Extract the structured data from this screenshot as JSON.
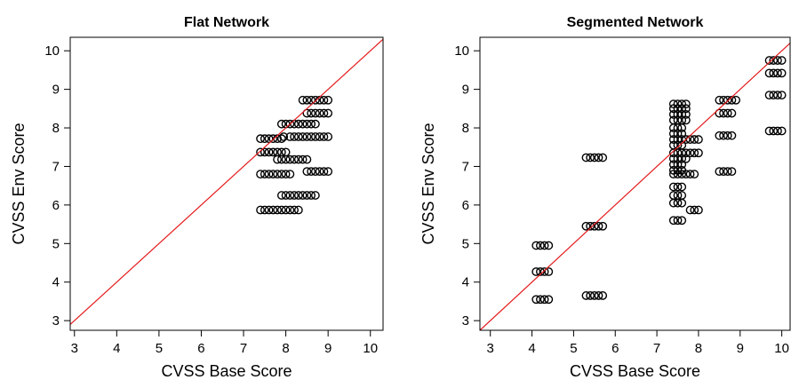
{
  "chart_data": [
    {
      "type": "scatter",
      "title": "Flat Network",
      "xlabel": "CVSS Base Score",
      "ylabel": "CVSS Env Score",
      "xlim": [
        2.9,
        10.3
      ],
      "ylim": [
        2.75,
        10.35
      ],
      "xticks": [
        3,
        4,
        5,
        6,
        7,
        8,
        9,
        10
      ],
      "yticks": [
        3,
        4,
        5,
        6,
        7,
        8,
        9,
        10
      ],
      "reference_line": {
        "slope": 1,
        "intercept": 0,
        "color": "#e41a1c"
      },
      "point_color": "#000000",
      "points": [
        [
          7.4,
          5.87
        ],
        [
          7.5,
          5.87
        ],
        [
          7.6,
          5.87
        ],
        [
          7.7,
          5.87
        ],
        [
          7.8,
          5.87
        ],
        [
          7.9,
          5.87
        ],
        [
          8.0,
          5.87
        ],
        [
          8.1,
          5.87
        ],
        [
          8.2,
          5.87
        ],
        [
          8.3,
          5.87
        ],
        [
          7.9,
          6.25
        ],
        [
          8.0,
          6.25
        ],
        [
          8.1,
          6.25
        ],
        [
          8.2,
          6.25
        ],
        [
          8.3,
          6.25
        ],
        [
          8.4,
          6.25
        ],
        [
          8.5,
          6.25
        ],
        [
          8.6,
          6.25
        ],
        [
          8.7,
          6.25
        ],
        [
          7.4,
          6.8
        ],
        [
          7.5,
          6.8
        ],
        [
          7.6,
          6.8
        ],
        [
          7.7,
          6.8
        ],
        [
          7.8,
          6.8
        ],
        [
          7.9,
          6.8
        ],
        [
          8.0,
          6.8
        ],
        [
          8.1,
          6.8
        ],
        [
          8.5,
          6.87
        ],
        [
          8.6,
          6.87
        ],
        [
          8.7,
          6.87
        ],
        [
          8.8,
          6.87
        ],
        [
          8.9,
          6.87
        ],
        [
          9.0,
          6.87
        ],
        [
          7.8,
          7.18
        ],
        [
          7.9,
          7.18
        ],
        [
          8.0,
          7.18
        ],
        [
          8.1,
          7.18
        ],
        [
          8.2,
          7.18
        ],
        [
          8.3,
          7.18
        ],
        [
          8.4,
          7.18
        ],
        [
          8.5,
          7.18
        ],
        [
          7.4,
          7.37
        ],
        [
          7.5,
          7.37
        ],
        [
          7.6,
          7.37
        ],
        [
          7.7,
          7.37
        ],
        [
          7.8,
          7.37
        ],
        [
          7.9,
          7.37
        ],
        [
          8.0,
          7.37
        ],
        [
          7.4,
          7.72
        ],
        [
          7.5,
          7.72
        ],
        [
          7.6,
          7.72
        ],
        [
          7.7,
          7.72
        ],
        [
          7.8,
          7.72
        ],
        [
          7.9,
          7.72
        ],
        [
          7.95,
          7.77
        ],
        [
          8.1,
          7.77
        ],
        [
          8.2,
          7.77
        ],
        [
          8.3,
          7.77
        ],
        [
          8.4,
          7.77
        ],
        [
          8.5,
          7.77
        ],
        [
          8.6,
          7.77
        ],
        [
          8.7,
          7.77
        ],
        [
          8.8,
          7.77
        ],
        [
          8.9,
          7.77
        ],
        [
          9.0,
          7.77
        ],
        [
          7.9,
          8.1
        ],
        [
          8.0,
          8.1
        ],
        [
          8.1,
          8.1
        ],
        [
          8.2,
          8.1
        ],
        [
          8.3,
          8.1
        ],
        [
          8.4,
          8.1
        ],
        [
          8.5,
          8.1
        ],
        [
          8.6,
          8.1
        ],
        [
          8.7,
          8.1
        ],
        [
          8.5,
          8.38
        ],
        [
          8.6,
          8.38
        ],
        [
          8.7,
          8.38
        ],
        [
          8.8,
          8.38
        ],
        [
          8.9,
          8.38
        ],
        [
          9.0,
          8.38
        ],
        [
          8.4,
          8.72
        ],
        [
          8.5,
          8.72
        ],
        [
          8.6,
          8.72
        ],
        [
          8.7,
          8.72
        ],
        [
          8.8,
          8.72
        ],
        [
          8.9,
          8.72
        ],
        [
          9.0,
          8.72
        ]
      ]
    },
    {
      "type": "scatter",
      "title": "Segmented Network",
      "xlabel": "CVSS Base Score",
      "ylabel": "CVSS Env Score",
      "xlim": [
        2.75,
        10.2
      ],
      "ylim": [
        2.75,
        10.35
      ],
      "xticks": [
        3,
        4,
        5,
        6,
        7,
        8,
        9,
        10
      ],
      "yticks": [
        3,
        4,
        5,
        6,
        7,
        8,
        9,
        10
      ],
      "reference_line": {
        "slope": 1,
        "intercept": 0,
        "color": "#e41a1c"
      },
      "point_color": "#000000",
      "points": [
        [
          4.1,
          3.55
        ],
        [
          4.2,
          3.55
        ],
        [
          4.3,
          3.55
        ],
        [
          4.4,
          3.55
        ],
        [
          4.1,
          4.27
        ],
        [
          4.2,
          4.27
        ],
        [
          4.3,
          4.27
        ],
        [
          4.4,
          4.27
        ],
        [
          4.1,
          4.95
        ],
        [
          4.2,
          4.95
        ],
        [
          4.3,
          4.95
        ],
        [
          4.4,
          4.95
        ],
        [
          5.3,
          3.65
        ],
        [
          5.4,
          3.65
        ],
        [
          5.5,
          3.65
        ],
        [
          5.6,
          3.65
        ],
        [
          5.7,
          3.65
        ],
        [
          5.3,
          5.45
        ],
        [
          5.4,
          5.45
        ],
        [
          5.5,
          5.45
        ],
        [
          5.6,
          5.45
        ],
        [
          5.7,
          5.45
        ],
        [
          5.3,
          7.23
        ],
        [
          5.4,
          7.23
        ],
        [
          5.5,
          7.23
        ],
        [
          5.6,
          7.23
        ],
        [
          5.7,
          7.23
        ],
        [
          7.4,
          5.6
        ],
        [
          7.5,
          5.6
        ],
        [
          7.6,
          5.6
        ],
        [
          7.8,
          5.87
        ],
        [
          7.9,
          5.87
        ],
        [
          8.0,
          5.87
        ],
        [
          7.4,
          6.05
        ],
        [
          7.5,
          6.05
        ],
        [
          7.6,
          6.05
        ],
        [
          7.4,
          6.25
        ],
        [
          7.5,
          6.25
        ],
        [
          7.6,
          6.25
        ],
        [
          7.4,
          6.47
        ],
        [
          7.5,
          6.47
        ],
        [
          7.6,
          6.47
        ],
        [
          7.4,
          6.8
        ],
        [
          7.5,
          6.8
        ],
        [
          7.6,
          6.8
        ],
        [
          7.7,
          6.8
        ],
        [
          7.8,
          6.8
        ],
        [
          7.9,
          6.8
        ],
        [
          7.4,
          6.9
        ],
        [
          7.5,
          6.9
        ],
        [
          7.6,
          6.9
        ],
        [
          7.4,
          7.05
        ],
        [
          7.5,
          7.05
        ],
        [
          7.6,
          7.05
        ],
        [
          7.4,
          7.2
        ],
        [
          7.5,
          7.2
        ],
        [
          7.6,
          7.2
        ],
        [
          7.7,
          7.2
        ],
        [
          7.4,
          7.35
        ],
        [
          7.5,
          7.35
        ],
        [
          7.6,
          7.35
        ],
        [
          7.7,
          7.35
        ],
        [
          7.8,
          7.35
        ],
        [
          7.9,
          7.35
        ],
        [
          8.0,
          7.35
        ],
        [
          7.4,
          7.55
        ],
        [
          7.5,
          7.55
        ],
        [
          7.6,
          7.55
        ],
        [
          7.4,
          7.7
        ],
        [
          7.5,
          7.7
        ],
        [
          7.6,
          7.7
        ],
        [
          7.7,
          7.7
        ],
        [
          7.8,
          7.7
        ],
        [
          7.9,
          7.7
        ],
        [
          8.0,
          7.7
        ],
        [
          7.4,
          7.85
        ],
        [
          7.5,
          7.85
        ],
        [
          7.6,
          7.85
        ],
        [
          7.4,
          8.0
        ],
        [
          7.5,
          8.0
        ],
        [
          7.6,
          8.0
        ],
        [
          7.4,
          8.2
        ],
        [
          7.5,
          8.2
        ],
        [
          7.6,
          8.2
        ],
        [
          7.7,
          8.2
        ],
        [
          7.4,
          8.35
        ],
        [
          7.5,
          8.35
        ],
        [
          7.6,
          8.35
        ],
        [
          7.7,
          8.35
        ],
        [
          7.4,
          8.5
        ],
        [
          7.5,
          8.5
        ],
        [
          7.6,
          8.5
        ],
        [
          7.7,
          8.5
        ],
        [
          7.4,
          8.62
        ],
        [
          7.5,
          8.62
        ],
        [
          7.6,
          8.62
        ],
        [
          7.7,
          8.62
        ],
        [
          8.5,
          6.87
        ],
        [
          8.6,
          6.87
        ],
        [
          8.7,
          6.87
        ],
        [
          8.8,
          6.87
        ],
        [
          8.5,
          7.8
        ],
        [
          8.6,
          7.8
        ],
        [
          8.7,
          7.8
        ],
        [
          8.8,
          7.8
        ],
        [
          8.5,
          8.38
        ],
        [
          8.6,
          8.38
        ],
        [
          8.7,
          8.38
        ],
        [
          8.8,
          8.38
        ],
        [
          8.5,
          8.72
        ],
        [
          8.6,
          8.72
        ],
        [
          8.7,
          8.72
        ],
        [
          8.8,
          8.72
        ],
        [
          8.9,
          8.72
        ],
        [
          9.7,
          7.92
        ],
        [
          9.8,
          7.92
        ],
        [
          9.9,
          7.92
        ],
        [
          10.0,
          7.92
        ],
        [
          9.7,
          8.85
        ],
        [
          9.8,
          8.85
        ],
        [
          9.9,
          8.85
        ],
        [
          10.0,
          8.85
        ],
        [
          9.7,
          9.42
        ],
        [
          9.8,
          9.42
        ],
        [
          9.9,
          9.42
        ],
        [
          10.0,
          9.42
        ],
        [
          9.7,
          9.75
        ],
        [
          9.8,
          9.75
        ],
        [
          9.9,
          9.75
        ],
        [
          10.0,
          9.75
        ]
      ]
    }
  ]
}
